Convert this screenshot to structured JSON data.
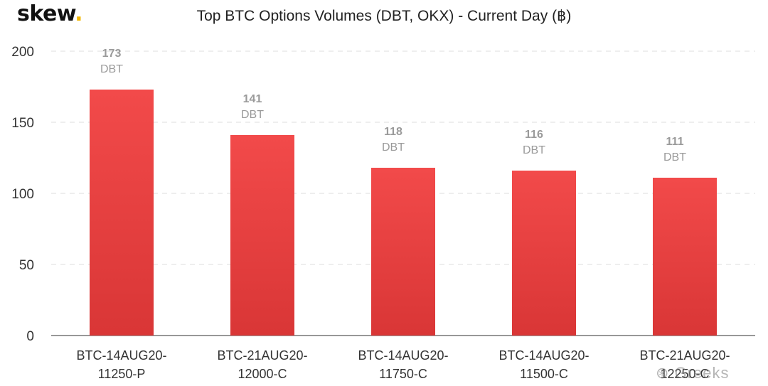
{
  "logo": {
    "text": "skew",
    "dot": "."
  },
  "chart_data": {
    "type": "bar",
    "title": "Top BTC Options Volumes (DBT, OKX) - Current Day (฿)",
    "categories": [
      [
        "BTC-14AUG20-",
        "11250-P"
      ],
      [
        "BTC-21AUG20-",
        "12000-C"
      ],
      [
        "BTC-14AUG20-",
        "11750-C"
      ],
      [
        "BTC-14AUG20-",
        "11500-C"
      ],
      [
        "BTC-21AUG20-",
        "12250-C"
      ]
    ],
    "values": [
      173,
      141,
      118,
      116,
      111
    ],
    "data_label_unit": "DBT",
    "ylim": [
      0,
      200
    ],
    "yticks": [
      0,
      50,
      100,
      150,
      200
    ],
    "xlabel": "",
    "ylabel": "",
    "grid": true,
    "bar_color_top": "#f24a4a",
    "bar_color_bottom": "#d93636"
  },
  "watermark": {
    "icon": "wechat-icon",
    "text": "Greeks"
  }
}
